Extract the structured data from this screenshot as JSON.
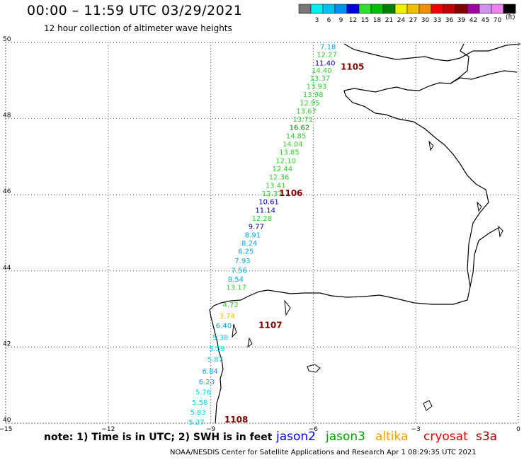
{
  "header": {
    "title": "00:00 – 11:59 UTC 03/29/2021",
    "subtitle": "12 hour collection of altimeter wave heights"
  },
  "legend": {
    "unit": "(ft)",
    "swatches": [
      {
        "label": "",
        "color": "#777777"
      },
      {
        "label": "3",
        "color": "#00f0f0"
      },
      {
        "label": "6",
        "color": "#00c0f0"
      },
      {
        "label": "9",
        "color": "#0090f0"
      },
      {
        "label": "12",
        "color": "#0000e0"
      },
      {
        "label": "15",
        "color": "#30e030"
      },
      {
        "label": "18",
        "color": "#00c000"
      },
      {
        "label": "21",
        "color": "#008000"
      },
      {
        "label": "24",
        "color": "#f0f000"
      },
      {
        "label": "27",
        "color": "#f0c000"
      },
      {
        "label": "30",
        "color": "#f09000"
      },
      {
        "label": "33",
        "color": "#f00000"
      },
      {
        "label": "36",
        "color": "#c00000"
      },
      {
        "label": "39",
        "color": "#800000"
      },
      {
        "label": "42",
        "color": "#a000a0"
      },
      {
        "label": "45",
        "color": "#d090f0"
      },
      {
        "label": "70",
        "color": "#f080f0"
      },
      {
        "label": "",
        "color": "#000000"
      }
    ]
  },
  "axes": {
    "lat_labels": [
      "50",
      "48",
      "46",
      "44",
      "42",
      "40"
    ],
    "lon_labels": [
      "−15",
      "−12",
      "−9",
      "−6",
      "−3",
      "0"
    ],
    "lat_values": [
      50,
      48,
      46,
      44,
      42,
      40
    ],
    "lon_values": [
      -15,
      -12,
      -9,
      -6,
      -3,
      0
    ]
  },
  "observations": [
    {
      "text": "7.18",
      "color": "#00a8f0",
      "lon": -5.8,
      "lat": 49.82
    },
    {
      "text": "12.27",
      "color": "#30d030",
      "lon": -5.9,
      "lat": 49.62
    },
    {
      "text": "11.40",
      "color": "#0000c0",
      "lon": -5.95,
      "lat": 49.4
    },
    {
      "text": "14.40",
      "color": "#30d030",
      "lon": -6.05,
      "lat": 49.2
    },
    {
      "text": "13.37",
      "color": "#30d030",
      "lon": -6.1,
      "lat": 49.0
    },
    {
      "text": "13.93",
      "color": "#30d030",
      "lon": -6.2,
      "lat": 48.78
    },
    {
      "text": "13.98",
      "color": "#30d030",
      "lon": -6.3,
      "lat": 48.57
    },
    {
      "text": "12.95",
      "color": "#30d030",
      "lon": -6.4,
      "lat": 48.35
    },
    {
      "text": "13.67",
      "color": "#30d030",
      "lon": -6.5,
      "lat": 48.13
    },
    {
      "text": "13.71",
      "color": "#30d030",
      "lon": -6.6,
      "lat": 47.92
    },
    {
      "text": "16.62",
      "color": "#008000",
      "lon": -6.7,
      "lat": 47.7
    },
    {
      "text": "14.85",
      "color": "#30d030",
      "lon": -6.8,
      "lat": 47.48
    },
    {
      "text": "14.04",
      "color": "#30d030",
      "lon": -6.9,
      "lat": 47.27
    },
    {
      "text": "13.85",
      "color": "#30d030",
      "lon": -7.0,
      "lat": 47.05
    },
    {
      "text": "12.10",
      "color": "#30d030",
      "lon": -7.1,
      "lat": 46.83
    },
    {
      "text": "12.44",
      "color": "#30d030",
      "lon": -7.2,
      "lat": 46.62
    },
    {
      "text": "12.36",
      "color": "#30d030",
      "lon": -7.3,
      "lat": 46.4
    },
    {
      "text": "13.41",
      "color": "#30d030",
      "lon": -7.4,
      "lat": 46.18
    },
    {
      "text": "12.37",
      "color": "#30d030",
      "lon": -7.5,
      "lat": 45.97
    },
    {
      "text": "10.61",
      "color": "#0000c0",
      "lon": -7.6,
      "lat": 45.75
    },
    {
      "text": "11.14",
      "color": "#0000c0",
      "lon": -7.7,
      "lat": 45.53
    },
    {
      "text": "12.28",
      "color": "#30d030",
      "lon": -7.8,
      "lat": 45.32
    },
    {
      "text": "9.77",
      "color": "#000080",
      "lon": -7.9,
      "lat": 45.1
    },
    {
      "text": "8.91",
      "color": "#00a8f0",
      "lon": -8.0,
      "lat": 44.88
    },
    {
      "text": "8.24",
      "color": "#00a8f0",
      "lon": -8.1,
      "lat": 44.67
    },
    {
      "text": "6.25",
      "color": "#00a8f0",
      "lon": -8.2,
      "lat": 44.45
    },
    {
      "text": "7.93",
      "color": "#00a8f0",
      "lon": -8.3,
      "lat": 44.2
    },
    {
      "text": "7.56",
      "color": "#00a8f0",
      "lon": -8.4,
      "lat": 43.95
    },
    {
      "text": "8.54",
      "color": "#00a8f0",
      "lon": -8.5,
      "lat": 43.72
    },
    {
      "text": "13.17",
      "color": "#30d030",
      "lon": -8.55,
      "lat": 43.5
    },
    {
      "text": "4.72",
      "color": "#30d030",
      "lon": -8.65,
      "lat": 43.05
    },
    {
      "text": "3.74",
      "color": "#f0c000",
      "lon": -8.75,
      "lat": 42.75
    },
    {
      "text": "6.40",
      "color": "#00a8f0",
      "lon": -8.85,
      "lat": 42.5
    },
    {
      "text": "5.38",
      "color": "#00d8f0",
      "lon": -8.95,
      "lat": 42.18
    },
    {
      "text": "5.59",
      "color": "#00d8f0",
      "lon": -9.05,
      "lat": 41.9
    },
    {
      "text": "5.87",
      "color": "#00d8f0",
      "lon": -9.1,
      "lat": 41.62
    },
    {
      "text": "6.84",
      "color": "#00a8f0",
      "lon": -9.25,
      "lat": 41.3
    },
    {
      "text": "6.23",
      "color": "#00a8f0",
      "lon": -9.35,
      "lat": 41.02
    },
    {
      "text": "5.76",
      "color": "#00d8f0",
      "lon": -9.45,
      "lat": 40.75
    },
    {
      "text": "5.58",
      "color": "#00d8f0",
      "lon": -9.55,
      "lat": 40.48
    },
    {
      "text": "5.83",
      "color": "#00d8f0",
      "lon": -9.6,
      "lat": 40.22
    },
    {
      "text": "5.27",
      "color": "#00d8f0",
      "lon": -9.65,
      "lat": 39.96
    }
  ],
  "markers": [
    {
      "text": "1105",
      "color": "#800000",
      "lon": -5.2,
      "lat": 49.28
    },
    {
      "text": "1106",
      "color": "#800000",
      "lon": -7.0,
      "lat": 45.97
    },
    {
      "text": "1107",
      "color": "#800000",
      "lon": -7.6,
      "lat": 42.5
    },
    {
      "text": "1108",
      "color": "#800000",
      "lon": -8.6,
      "lat": 40.02
    }
  ],
  "footer": {
    "note": "note: 1) Time is in UTC; 2) SWH is in feet",
    "credit": "NOAA/NESDIS Center for Satellite Applications and Research   Apr  1 08:29:35 UTC 2021"
  },
  "satellites": [
    {
      "name": "jason2",
      "color": "#0000e0"
    },
    {
      "name": "jason3",
      "color": "#00a000"
    },
    {
      "name": "altika",
      "color": "#f0a000"
    },
    {
      "name": "cryosat",
      "color": "#e00000"
    },
    {
      "name": "s3a",
      "color": "#a00000"
    }
  ]
}
